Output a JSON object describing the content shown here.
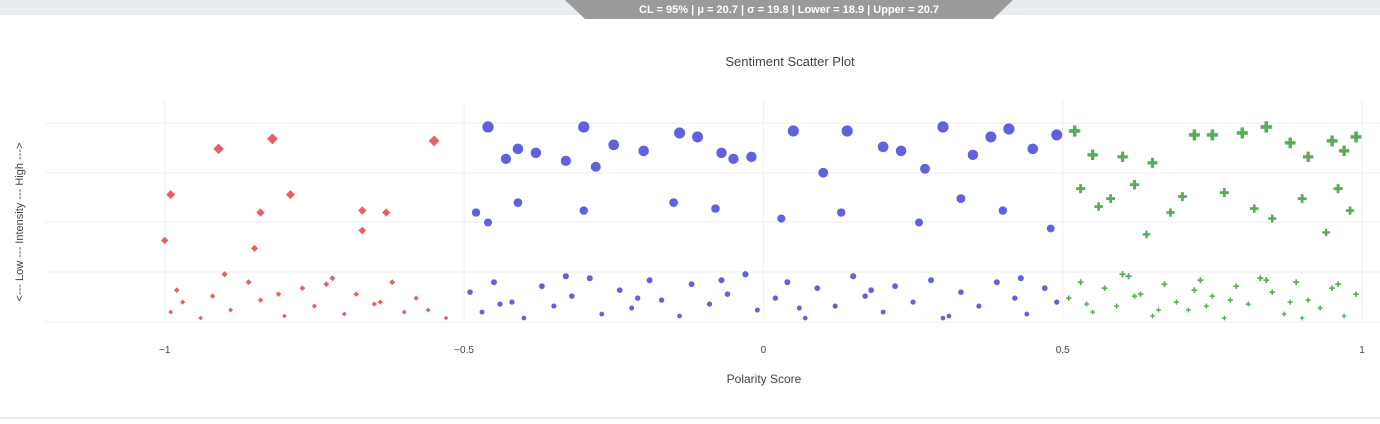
{
  "banner": "CL = 95% | μ = 20.7 | σ = 19.8 | Lower = 18.9 | Upper = 20.7",
  "chart_data": {
    "type": "scatter",
    "title": "Sentiment Scatter Plot",
    "x_label": "Polarity Score",
    "y_label": "<--- Low --- Intensity --- High --->",
    "xlim": [
      -1.2,
      1.03
    ],
    "ylim": [
      0,
      1
    ],
    "grid": true,
    "xticks": [
      {
        "value": -1,
        "label": "−1"
      },
      {
        "value": -0.5,
        "label": "−0.5"
      },
      0,
      0.5,
      1
    ],
    "series": [
      {
        "color": "#e03a3a",
        "marker": "diamond",
        "x": [
          -0.91,
          -0.82,
          -0.55,
          -0.99,
          -0.79,
          -0.67,
          -0.63,
          -0.84,
          -0.67,
          -1.0,
          -0.85,
          -0.98,
          -0.97,
          -0.94,
          -0.92,
          -0.89,
          -0.86,
          -0.84,
          -0.8,
          -0.77,
          -0.75,
          -0.72,
          -0.7,
          -0.68,
          -0.65,
          -0.62,
          -0.6,
          -0.58,
          -0.56,
          -0.53,
          -0.99,
          -0.9,
          -0.81,
          -0.73,
          -0.64
        ],
        "y": [
          0.87,
          0.92,
          0.91,
          0.64,
          0.64,
          0.56,
          0.55,
          0.55,
          0.46,
          0.41,
          0.37,
          0.16,
          0.1,
          0.02,
          0.13,
          0.06,
          0.2,
          0.11,
          0.03,
          0.17,
          0.08,
          0.22,
          0.04,
          0.14,
          0.09,
          0.2,
          0.05,
          0.12,
          0.06,
          0.02,
          0.05,
          0.24,
          0.14,
          0.19,
          0.1
        ]
      },
      {
        "color": "#3a3ad8",
        "marker": "circle",
        "x": [
          -0.46,
          -0.43,
          -0.41,
          -0.38,
          -0.33,
          -0.3,
          -0.28,
          -0.25,
          -0.2,
          -0.14,
          -0.11,
          -0.07,
          -0.05,
          -0.02,
          0.05,
          0.1,
          0.14,
          0.2,
          0.23,
          0.27,
          0.3,
          0.35,
          0.38,
          0.41,
          0.45,
          0.49,
          -0.48,
          -0.46,
          -0.41,
          -0.3,
          -0.15,
          -0.08,
          0.03,
          0.13,
          0.26,
          0.33,
          0.4,
          0.48,
          -0.49,
          -0.47,
          -0.45,
          -0.42,
          -0.4,
          -0.37,
          -0.35,
          -0.32,
          -0.29,
          -0.27,
          -0.24,
          -0.22,
          -0.19,
          -0.17,
          -0.14,
          -0.12,
          -0.09,
          -0.06,
          -0.03,
          -0.01,
          0.02,
          0.04,
          0.07,
          0.09,
          0.12,
          0.15,
          0.17,
          0.2,
          0.22,
          0.25,
          0.28,
          0.31,
          0.33,
          0.36,
          0.39,
          0.42,
          0.44,
          0.47,
          0.49,
          -0.44,
          -0.33,
          -0.21,
          -0.07,
          0.06,
          0.18,
          0.3,
          0.43
        ],
        "y": [
          0.98,
          0.82,
          0.87,
          0.85,
          0.81,
          0.98,
          0.78,
          0.89,
          0.86,
          0.95,
          0.93,
          0.85,
          0.82,
          0.83,
          0.96,
          0.75,
          0.96,
          0.88,
          0.86,
          0.77,
          0.98,
          0.84,
          0.93,
          0.97,
          0.87,
          0.94,
          0.55,
          0.5,
          0.6,
          0.56,
          0.6,
          0.57,
          0.52,
          0.55,
          0.5,
          0.62,
          0.56,
          0.47,
          0.15,
          0.05,
          0.2,
          0.1,
          0.02,
          0.18,
          0.08,
          0.13,
          0.22,
          0.04,
          0.16,
          0.07,
          0.21,
          0.11,
          0.03,
          0.19,
          0.09,
          0.14,
          0.24,
          0.06,
          0.12,
          0.2,
          0.02,
          0.17,
          0.08,
          0.23,
          0.13,
          0.05,
          0.18,
          0.1,
          0.21,
          0.03,
          0.15,
          0.08,
          0.2,
          0.12,
          0.04,
          0.17,
          0.1,
          0.09,
          0.23,
          0.12,
          0.21,
          0.07,
          0.16,
          0.02,
          0.22
        ]
      },
      {
        "color": "#2e9a2e",
        "marker": "cross",
        "x": [
          0.52,
          0.55,
          0.6,
          0.65,
          0.72,
          0.75,
          0.8,
          0.84,
          0.88,
          0.91,
          0.95,
          0.97,
          0.99,
          0.53,
          0.58,
          0.62,
          0.68,
          0.77,
          0.82,
          0.9,
          0.94,
          0.98,
          0.56,
          0.64,
          0.7,
          0.85,
          0.96,
          0.51,
          0.53,
          0.55,
          0.57,
          0.59,
          0.61,
          0.63,
          0.65,
          0.67,
          0.69,
          0.71,
          0.73,
          0.75,
          0.77,
          0.79,
          0.81,
          0.83,
          0.85,
          0.87,
          0.89,
          0.91,
          0.93,
          0.95,
          0.97,
          0.99,
          0.54,
          0.6,
          0.66,
          0.72,
          0.78,
          0.84,
          0.9,
          0.96,
          0.62,
          0.74,
          0.88
        ],
        "y": [
          0.96,
          0.84,
          0.83,
          0.8,
          0.94,
          0.94,
          0.95,
          0.98,
          0.9,
          0.83,
          0.91,
          0.86,
          0.93,
          0.67,
          0.62,
          0.69,
          0.55,
          0.65,
          0.57,
          0.62,
          0.45,
          0.56,
          0.58,
          0.44,
          0.63,
          0.52,
          0.67,
          0.12,
          0.2,
          0.05,
          0.17,
          0.08,
          0.23,
          0.14,
          0.03,
          0.19,
          0.1,
          0.06,
          0.21,
          0.13,
          0.02,
          0.18,
          0.09,
          0.22,
          0.15,
          0.04,
          0.2,
          0.11,
          0.07,
          0.17,
          0.03,
          0.14,
          0.09,
          0.24,
          0.06,
          0.16,
          0.11,
          0.21,
          0.02,
          0.19,
          0.13,
          0.08,
          0.1
        ]
      }
    ]
  }
}
